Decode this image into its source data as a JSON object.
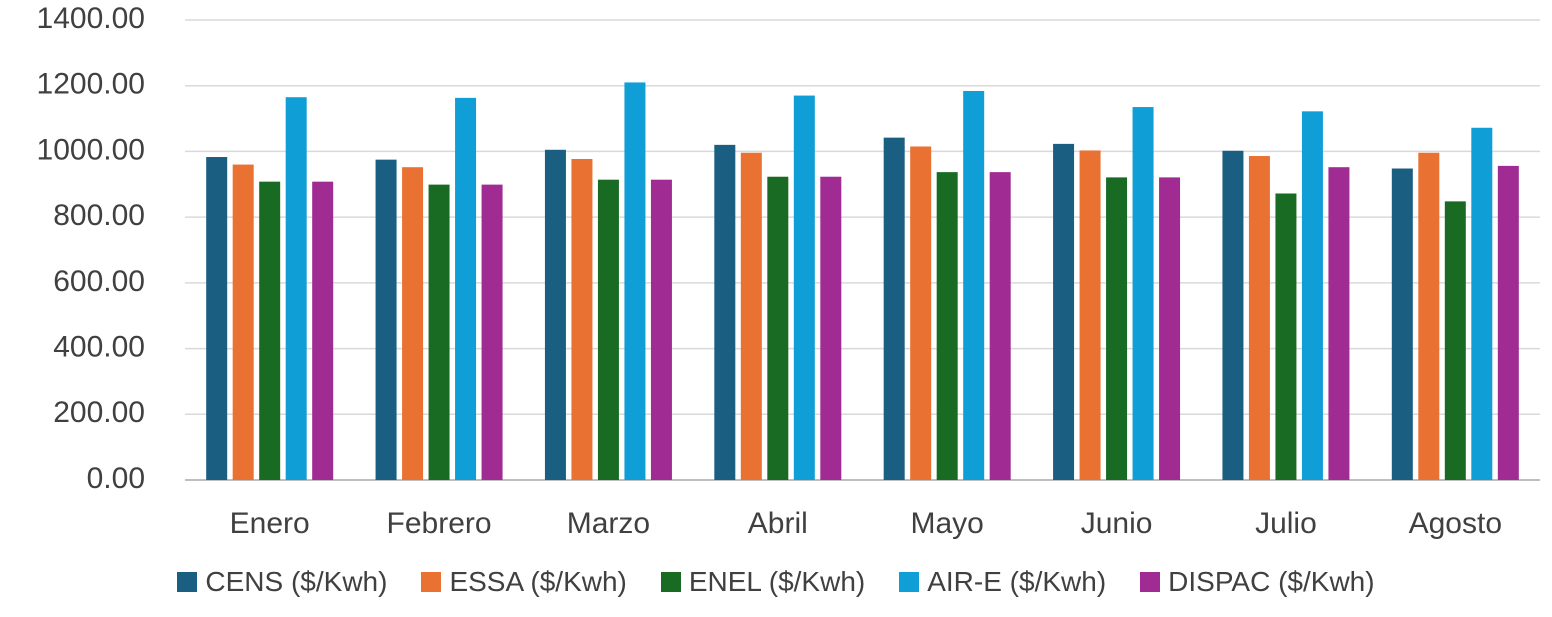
{
  "chart_data": {
    "type": "bar",
    "title": "",
    "xlabel": "",
    "ylabel": "",
    "ylim": [
      0,
      1400
    ],
    "yticks": [
      "0.00",
      "200.00",
      "400.00",
      "600.00",
      "800.00",
      "1000.00",
      "1200.00",
      "1400.00"
    ],
    "grid": true,
    "legend_position": "bottom",
    "categories": [
      "Enero",
      "Febrero",
      "Marzo",
      "Abril",
      "Mayo",
      "Junio",
      "Julio",
      "Agosto"
    ],
    "series": [
      {
        "name": "CENS ($/Kwh)",
        "color": "#1a5e82",
        "values": [
          983,
          975,
          1005,
          1020,
          1042,
          1023,
          1002,
          948
        ]
      },
      {
        "name": "ESSA ($/Kwh)",
        "color": "#e97132",
        "values": [
          960,
          952,
          977,
          996,
          1015,
          1003,
          986,
          996
        ]
      },
      {
        "name": "ENEL ($/Kwh)",
        "color": "#196b24",
        "values": [
          908,
          899,
          914,
          923,
          937,
          921,
          872,
          848
        ]
      },
      {
        "name": "AIR-E ($/Kwh)",
        "color": "#0f9ed5",
        "values": [
          1165,
          1163,
          1210,
          1170,
          1184,
          1135,
          1122,
          1072
        ]
      },
      {
        "name": "DISPAC ($/Kwh)",
        "color": "#a02b93",
        "values": [
          908,
          899,
          914,
          923,
          937,
          921,
          952,
          956
        ]
      }
    ]
  }
}
